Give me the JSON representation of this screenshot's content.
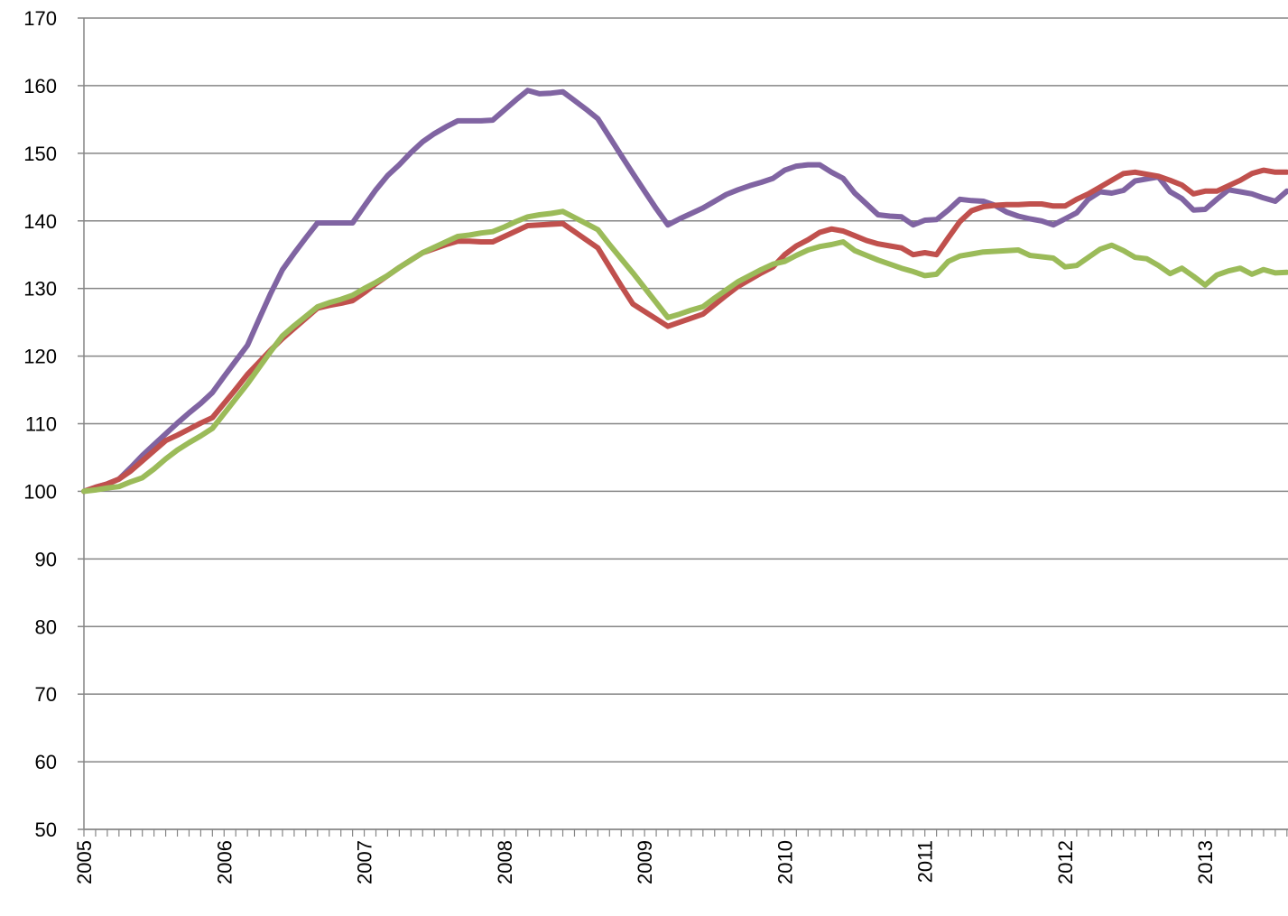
{
  "chart_data": {
    "type": "line",
    "categories": [
      "2005",
      null,
      null,
      null,
      null,
      null,
      null,
      null,
      null,
      null,
      null,
      null,
      "2006",
      null,
      null,
      null,
      null,
      null,
      null,
      null,
      null,
      null,
      null,
      null,
      "2007",
      null,
      null,
      null,
      null,
      null,
      null,
      null,
      null,
      null,
      null,
      null,
      "2008",
      null,
      null,
      null,
      null,
      null,
      null,
      null,
      null,
      null,
      null,
      null,
      "2009",
      null,
      null,
      null,
      null,
      null,
      null,
      null,
      null,
      null,
      null,
      null,
      "2010",
      null,
      null,
      null,
      null,
      null,
      null,
      null,
      null,
      null,
      null,
      null,
      "2011",
      null,
      null,
      null,
      null,
      null,
      null,
      null,
      null,
      null,
      null,
      null,
      "2012",
      null,
      null,
      null,
      null,
      null,
      null,
      null,
      null,
      null,
      null,
      null,
      "2013",
      null,
      null,
      null,
      null,
      null,
      null,
      null
    ],
    "series": [
      {
        "color": "#8064a2",
        "values": [
          100,
          100.6,
          101.1,
          101.8,
          103.5,
          105.3,
          106.9,
          108.5,
          110.1,
          111.6,
          113.0,
          114.6,
          117,
          119.3,
          121.6,
          125.5,
          129.3,
          132.8,
          135.2,
          137.5,
          139.7,
          139.7,
          139.7,
          139.7,
          142.2,
          144.6,
          146.7,
          148.3,
          150.1,
          151.7,
          152.9,
          153.9,
          154.8,
          154.8,
          154.8,
          154.9,
          156.4,
          157.9,
          159.3,
          158.8,
          158.9,
          159.1,
          157.8,
          156.5,
          155.1,
          152.4,
          149.7,
          147.0,
          144.4,
          141.8,
          139.4,
          140.3,
          141.1,
          141.9,
          142.9,
          143.9,
          144.6,
          145.2,
          145.7,
          146.3,
          147.5,
          148.1,
          148.3,
          148.3,
          147.2,
          146.3,
          144.1,
          142.5,
          140.9,
          140.7,
          140.6,
          139.4,
          140.1,
          140.2,
          141.6,
          143.2,
          143.0,
          142.9,
          142.3,
          141.3,
          140.7,
          140.3,
          140.0,
          139.4,
          140.3,
          141.2,
          143.2,
          144.3,
          144.1,
          144.5,
          145.9,
          146.2,
          146.5,
          144.3,
          143.3,
          141.6,
          141.7,
          143.2,
          144.6,
          144.3,
          144.0,
          143.4,
          142.9,
          144.4
        ]
      },
      {
        "color": "#c0504d",
        "values": [
          100,
          100.6,
          101.1,
          101.8,
          103,
          104.5,
          106,
          107.5,
          108.3,
          109.2,
          110.1,
          110.9,
          113,
          115.1,
          117.3,
          119.1,
          120.9,
          122.6,
          124.1,
          125.6,
          127.1,
          127.5,
          127.8,
          128.2,
          129.4,
          130.7,
          131.9,
          133.1,
          134.2,
          135.3,
          135.9,
          136.5,
          137,
          137,
          136.9,
          136.9,
          137.7,
          138.5,
          139.3,
          139.4,
          139.5,
          139.6,
          138.4,
          137.2,
          136,
          133.2,
          130.4,
          127.7,
          126.6,
          125.5,
          124.4,
          125,
          125.6,
          126.2,
          127.6,
          129,
          130.3,
          131.3,
          132.3,
          133.2,
          135,
          136.3,
          137.2,
          138.3,
          138.8,
          138.5,
          137.8,
          137.1,
          136.6,
          136.3,
          136,
          135,
          135.3,
          135,
          137.5,
          139.9,
          141.5,
          142.1,
          142.3,
          142.4,
          142.4,
          142.5,
          142.5,
          142.2,
          142.2,
          143.2,
          144,
          145,
          146,
          147,
          147.2,
          146.9,
          146.6,
          146,
          145.3,
          144,
          144.4,
          144.4,
          145.2,
          146,
          147,
          147.5,
          147.2,
          147.2
        ]
      },
      {
        "color": "#9bbb59",
        "values": [
          100,
          100.2,
          100.5,
          100.7,
          101.4,
          102,
          103.3,
          104.8,
          106.1,
          107.2,
          108.2,
          109.3,
          111.5,
          113.7,
          115.9,
          118.3,
          120.7,
          123,
          124.5,
          125.9,
          127.3,
          127.9,
          128.4,
          129,
          130,
          130.9,
          131.9,
          133.1,
          134.2,
          135.3,
          136.1,
          136.9,
          137.7,
          137.9,
          138.2,
          138.4,
          139.1,
          139.9,
          140.6,
          140.9,
          141.1,
          141.4,
          140.5,
          139.6,
          138.7,
          136.5,
          134.4,
          132.3,
          130.1,
          127.9,
          125.7,
          126.2,
          126.8,
          127.3,
          128.6,
          129.8,
          131,
          131.9,
          132.8,
          133.6,
          134,
          134.9,
          135.7,
          136.2,
          136.5,
          136.9,
          135.6,
          134.9,
          134.2,
          133.6,
          133,
          132.5,
          131.9,
          132.1,
          134,
          134.8,
          135.1,
          135.4,
          135.5,
          135.6,
          135.7,
          134.9,
          134.7,
          134.5,
          133.2,
          133.4,
          134.6,
          135.8,
          136.4,
          135.6,
          134.6,
          134.4,
          133.4,
          132.2,
          133,
          131.8,
          130.5,
          132,
          132.6,
          133,
          132.1,
          132.8,
          132.3,
          132.4
        ]
      }
    ],
    "ylim": [
      50,
      170
    ],
    "yticks": [
      50,
      60,
      70,
      80,
      90,
      100,
      110,
      120,
      130,
      140,
      150,
      160,
      170
    ],
    "grid": true
  }
}
